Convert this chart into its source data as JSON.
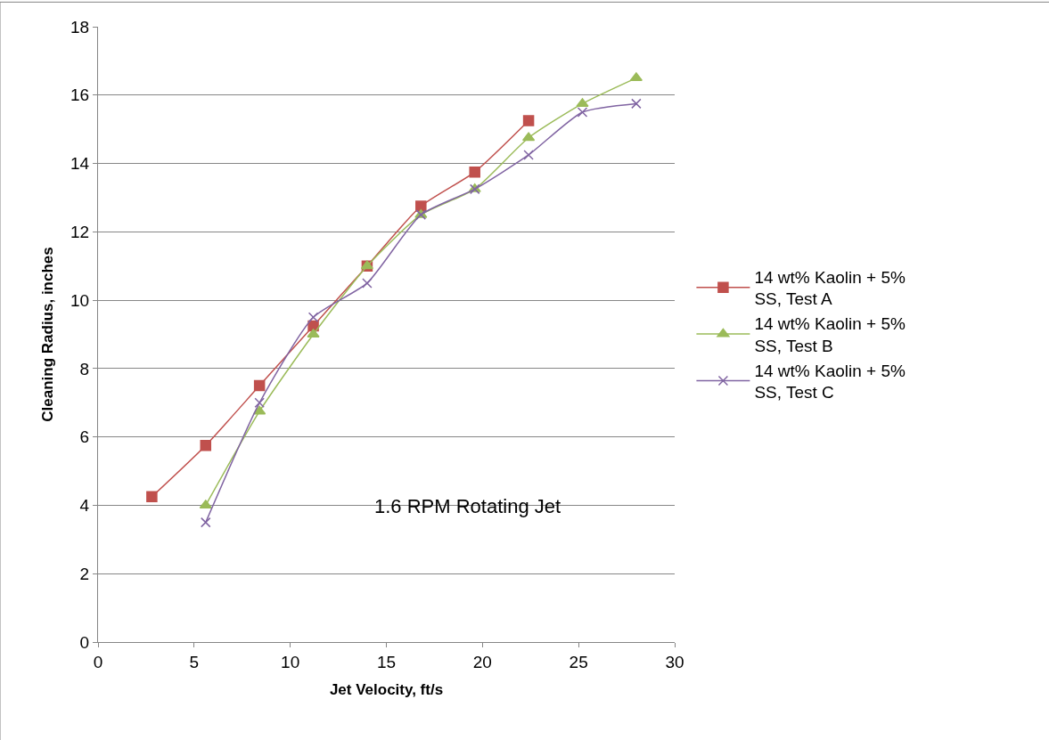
{
  "chart_data": {
    "type": "line",
    "xlabel": "Jet Velocity, ft/s",
    "ylabel": "Cleaning Radius, inches",
    "xlim": [
      0,
      30
    ],
    "xticks": [
      0,
      5,
      10,
      15,
      20,
      25,
      30
    ],
    "ylim": [
      0,
      18
    ],
    "yticks": [
      0,
      2,
      4,
      6,
      8,
      10,
      12,
      14,
      16,
      18
    ],
    "grid": "y",
    "legend": "right",
    "line_style": "solid",
    "annotations": [
      "1.6 RPM Rotating Jet"
    ],
    "series": [
      {
        "name": "14 wt% Kaolin + 5% SS, Test A",
        "color": "#c0504d",
        "marker": "square",
        "x": [
          2.8,
          5.6,
          8.4,
          11.2,
          14.0,
          16.8,
          19.6,
          22.4
        ],
        "values": [
          4.25,
          5.75,
          7.5,
          9.25,
          11.0,
          12.75,
          13.75,
          15.25
        ]
      },
      {
        "name": "14 wt% Kaolin + 5% SS, Test B",
        "color": "#9bbb59",
        "marker": "triangle",
        "x": [
          5.6,
          8.4,
          11.2,
          14.0,
          16.8,
          19.6,
          22.4,
          25.2,
          28.0
        ],
        "values": [
          4.0,
          6.75,
          9.0,
          11.0,
          12.5,
          13.25,
          14.75,
          15.75,
          16.5
        ]
      },
      {
        "name": "14 wt% Kaolin + 5% SS, Test C",
        "color": "#8064a2",
        "marker": "cross",
        "x": [
          5.6,
          8.4,
          11.2,
          14.0,
          16.8,
          19.6,
          22.4,
          25.2,
          28.0
        ],
        "values": [
          3.5,
          7.0,
          9.5,
          10.5,
          12.5,
          13.25,
          14.25,
          15.5,
          15.75
        ]
      }
    ]
  }
}
